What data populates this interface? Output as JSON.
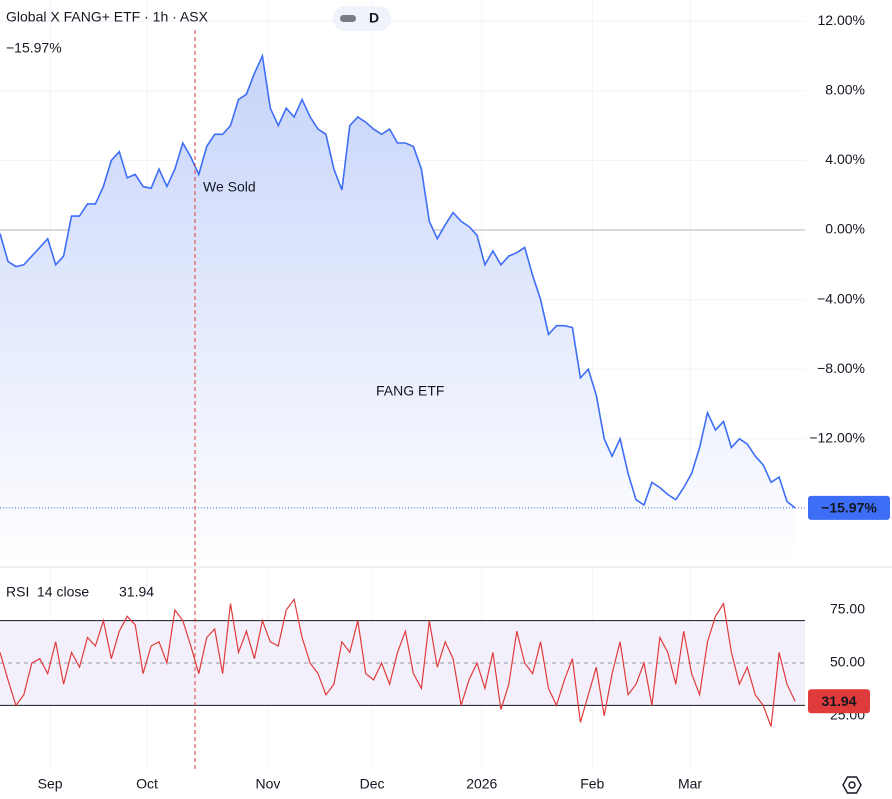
{
  "chart_data": [
    {
      "type": "area",
      "title": "Global X FANG+ ETF · 1h · ASX",
      "interval_badge": "D",
      "subtitle": "−15.97%",
      "annotations": [
        "We Sold",
        "FANG ETF"
      ],
      "series": [
        {
          "name": "FANG ETF",
          "color": "#3d6ef5",
          "values": [
            -0.2,
            -1.8,
            -2.1,
            -2.0,
            -1.5,
            -1.0,
            -0.5,
            -2.0,
            -1.5,
            0.8,
            0.8,
            1.5,
            1.5,
            2.5,
            4.0,
            4.5,
            3.0,
            3.2,
            2.5,
            2.4,
            3.5,
            2.5,
            3.5,
            5.0,
            4.2,
            3.2,
            4.8,
            5.5,
            5.5,
            6.0,
            7.5,
            7.8,
            9.0,
            10.0,
            7.0,
            6.0,
            7.0,
            6.5,
            7.5,
            6.5,
            5.8,
            5.5,
            3.5,
            2.3,
            6.0,
            6.5,
            6.2,
            5.8,
            5.5,
            5.8,
            5.0,
            5.0,
            4.8,
            3.5,
            0.5,
            -0.5,
            0.3,
            1.0,
            0.5,
            0.2,
            -0.3,
            -2.0,
            -1.2,
            -2.0,
            -1.5,
            -1.3,
            -1.0,
            -2.6,
            -4.0,
            -6.0,
            -5.5,
            -5.5,
            -5.6,
            -8.5,
            -8.0,
            -9.5,
            -12.0,
            -13.0,
            -12.0,
            -14.0,
            -15.5,
            -15.8,
            -14.5,
            -14.8,
            -15.2,
            -15.5,
            -14.8,
            -14.0,
            -12.5,
            -10.5,
            -11.5,
            -11.0,
            -12.5,
            -12.0,
            -12.3,
            -13.0,
            -13.5,
            -14.5,
            -14.2,
            -15.6,
            -15.97
          ],
          "last_label": "−15.97%"
        }
      ],
      "xlim": [
        0,
        100
      ],
      "xticks": [
        {
          "value": 6.3,
          "label": "Sep"
        },
        {
          "value": 18.5,
          "label": "Oct"
        },
        {
          "value": 33.7,
          "label": "Nov"
        },
        {
          "value": 46.8,
          "label": "Dec"
        },
        {
          "value": 60.6,
          "label": "2026"
        },
        {
          "value": 74.5,
          "label": "Feb"
        },
        {
          "value": 86.8,
          "label": "Mar"
        }
      ],
      "ylim": [
        -19.25,
        13.22
      ],
      "yticks": [
        {
          "value": 12,
          "label": "12.00%"
        },
        {
          "value": 8,
          "label": "8.00%"
        },
        {
          "value": 4,
          "label": "4.00%"
        },
        {
          "value": 0,
          "label": "0.00%"
        },
        {
          "value": -4,
          "label": "−4.00%"
        },
        {
          "value": -8,
          "label": "−8.00%"
        },
        {
          "value": -12,
          "label": "−12.00%"
        }
      ],
      "grid": true
    },
    {
      "type": "line",
      "title": "RSI",
      "subtitle": "14 close",
      "current_label": "31.94",
      "series": [
        {
          "name": "RSI",
          "color": "#e03b3b",
          "values": [
            55,
            42,
            30,
            35,
            50,
            52,
            45,
            60,
            40,
            55,
            48,
            62,
            58,
            70,
            52,
            65,
            72,
            68,
            45,
            58,
            60,
            50,
            75,
            70,
            58,
            45,
            62,
            66,
            45,
            78,
            55,
            65,
            52,
            70,
            60,
            58,
            75,
            80,
            62,
            50,
            45,
            35,
            40,
            60,
            55,
            70,
            45,
            42,
            50,
            40,
            55,
            65,
            45,
            38,
            70,
            48,
            60,
            52,
            30,
            42,
            50,
            38,
            55,
            28,
            40,
            65,
            50,
            45,
            60,
            38,
            30,
            42,
            52,
            22,
            35,
            48,
            25,
            45,
            60,
            35,
            40,
            50,
            30,
            62,
            55,
            40,
            65,
            45,
            35,
            60,
            72,
            78,
            55,
            40,
            48,
            35,
            30,
            20,
            55,
            40,
            31.94
          ],
          "last_label": "31.94"
        }
      ],
      "xlim": [
        0,
        100
      ],
      "ylim": [
        -0.5,
        94.8
      ],
      "yticks": [
        {
          "value": 75,
          "label": "75.00"
        },
        {
          "value": 50,
          "label": "50.00"
        },
        {
          "value": 25,
          "label": "25.00"
        }
      ],
      "bands": [
        70,
        30
      ]
    }
  ]
}
